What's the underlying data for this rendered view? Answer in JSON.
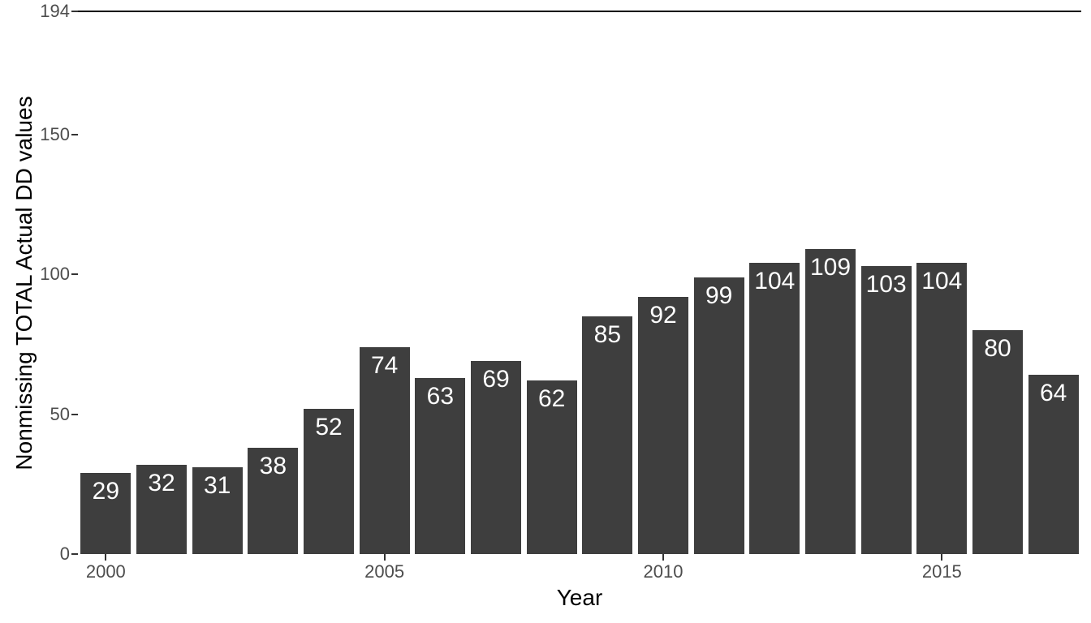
{
  "chart_data": {
    "type": "bar",
    "categories": [
      "2000",
      "2001",
      "2002",
      "2003",
      "2004",
      "2005",
      "2006",
      "2007",
      "2008",
      "2009",
      "2010",
      "2011",
      "2012",
      "2013",
      "2014",
      "2015",
      "2016",
      "2017"
    ],
    "values": [
      29,
      32,
      31,
      38,
      52,
      74,
      63,
      69,
      62,
      85,
      92,
      99,
      104,
      109,
      103,
      104,
      80,
      64
    ],
    "title": "",
    "xlabel": "Year",
    "ylabel": "Nonmissing TOTAL Actual DD values",
    "ylim": [
      0,
      194
    ],
    "y_ticks": [
      0,
      50,
      100,
      150,
      194
    ],
    "x_ticks": [
      "2000",
      "2005",
      "2010",
      "2015"
    ],
    "reference_line_y": 194,
    "bar_labels_inside": true,
    "grid": false,
    "legend": "none",
    "colors": {
      "bar": "#3E3E3E",
      "bar_label": "#FFFFFF",
      "tick_text": "#4D4D4D",
      "tick_mark": "#333333",
      "axis_title": "#000000",
      "reference_line": "#000000",
      "background": "#FFFFFF"
    }
  }
}
